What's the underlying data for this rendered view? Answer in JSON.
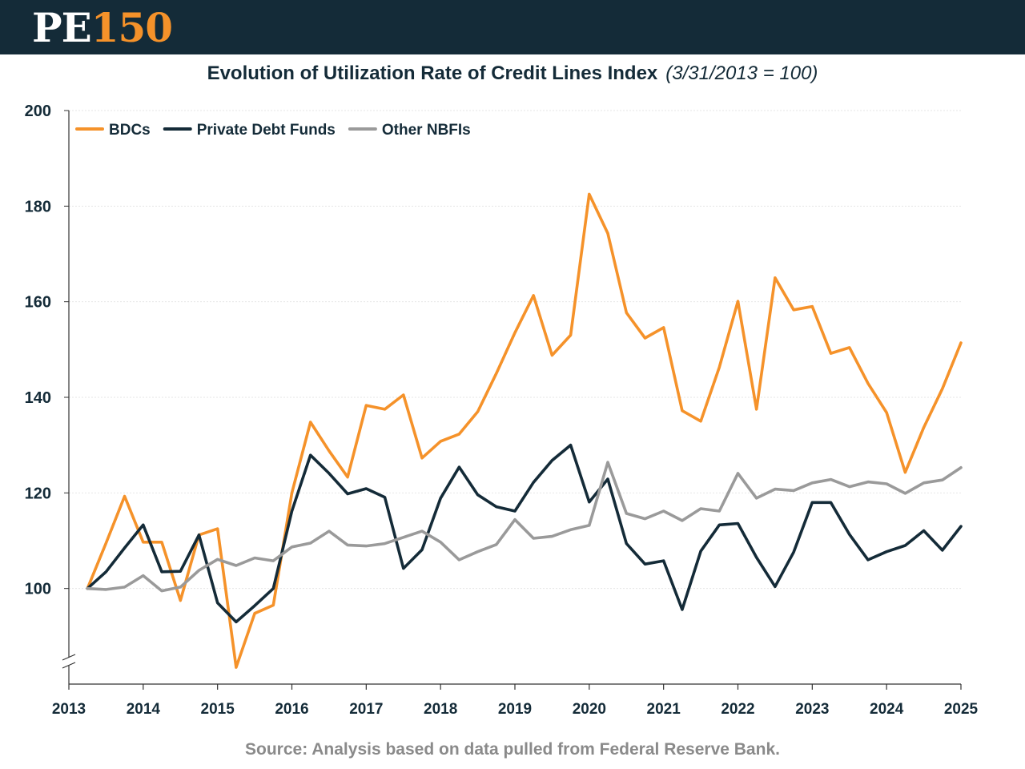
{
  "header": {
    "logo_pe": "PE",
    "logo_num": "150",
    "brand_dark": "#142b38",
    "brand_orange": "#f5922a"
  },
  "footer": {
    "source": "Source: Analysis based on data pulled from Federal Reserve Bank."
  },
  "chart_data": {
    "type": "line",
    "title": "Evolution of Utilization Rate of Credit Lines Index",
    "subtitle": "(3/31/2013 = 100)",
    "xlabel": "",
    "ylabel": "",
    "xlim": [
      2013,
      2025
    ],
    "ylim": [
      80,
      200
    ],
    "y_ticks": [
      100,
      120,
      140,
      160,
      180,
      200
    ],
    "x_ticks": [
      2013,
      2014,
      2015,
      2016,
      2017,
      2018,
      2019,
      2020,
      2021,
      2022,
      2023,
      2024,
      2025
    ],
    "axis_break": true,
    "grid": true,
    "legend_position": "top-left",
    "x": [
      2013.25,
      2013.5,
      2013.75,
      2014.0,
      2014.25,
      2014.5,
      2014.75,
      2015.0,
      2015.25,
      2015.5,
      2015.75,
      2016.0,
      2016.25,
      2016.5,
      2016.75,
      2017.0,
      2017.25,
      2017.5,
      2017.75,
      2018.0,
      2018.25,
      2018.5,
      2018.75,
      2019.0,
      2019.25,
      2019.5,
      2019.75,
      2020.0,
      2020.25,
      2020.5,
      2020.75,
      2021.0,
      2021.25,
      2021.5,
      2021.75,
      2022.0,
      2022.25,
      2022.5,
      2022.75,
      2023.0,
      2023.25,
      2023.5,
      2023.75,
      2024.0,
      2024.25,
      2024.5,
      2024.75,
      2025.0
    ],
    "series": [
      {
        "name": "BDCs",
        "color": "#f5922a",
        "values": [
          100,
          109.5,
          119.3,
          109.7,
          109.7,
          97.5,
          111.2,
          112.5,
          83.5,
          94.8,
          96.5,
          120,
          134.8,
          128.8,
          123.3,
          138.3,
          137.5,
          140.5,
          127.3,
          130.8,
          132.3,
          137,
          145,
          153.5,
          161.3,
          148.8,
          153,
          182.5,
          174.3,
          157.7,
          152.4,
          154.6,
          137.2,
          135,
          146.3,
          160.1,
          137.5,
          165,
          158.3,
          159,
          149.2,
          150.4,
          142.9,
          136.8,
          124.3,
          133.7,
          141.8,
          151.4
        ]
      },
      {
        "name": "Private Debt Funds",
        "color": "#142b38",
        "values": [
          100,
          103.5,
          108.5,
          113.3,
          103.5,
          103.6,
          111.2,
          97,
          93,
          96.4,
          100,
          116.2,
          127.9,
          124.1,
          119.8,
          120.9,
          119.1,
          104.2,
          108.1,
          118.9,
          125.4,
          119.6,
          117.1,
          116.2,
          122.2,
          126.8,
          130,
          118.1,
          122.9,
          109.4,
          105.1,
          105.8,
          95.6,
          107.8,
          113.3,
          113.6,
          106.5,
          100.4,
          107.6,
          118,
          118,
          111.3,
          106,
          107.7,
          109,
          112.1,
          108,
          113
        ]
      },
      {
        "name": "Other NBFIs",
        "color": "#9a9a9a",
        "values": [
          100,
          99.8,
          100.3,
          102.7,
          99.5,
          100.3,
          103.8,
          106.1,
          104.8,
          106.4,
          105.8,
          108.7,
          109.5,
          112,
          109.1,
          108.9,
          109.4,
          110.7,
          112,
          109.7,
          106,
          107.7,
          109.2,
          114.4,
          110.5,
          110.9,
          112.3,
          113.2,
          126.4,
          115.7,
          114.6,
          116.2,
          114.2,
          116.7,
          116.2,
          124.1,
          118.9,
          120.8,
          120.5,
          122.1,
          122.8,
          121.3,
          122.3,
          121.9,
          119.9,
          122.1,
          122.7,
          125.3
        ]
      }
    ]
  }
}
